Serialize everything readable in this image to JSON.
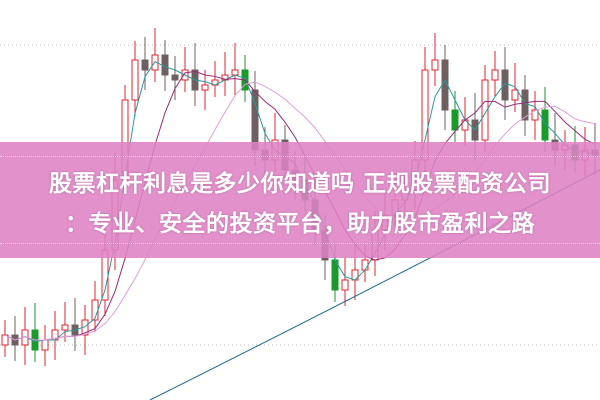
{
  "banner": {
    "title_line1": "股票杠杆利息是多少你知道吗 正规股票配资公司",
    "title_line2": "：专业、安全的投资平台，助力股市盈利之路"
  },
  "colors": {
    "banner": "#de82c4",
    "candle_up": "#e0262c",
    "candle_down_green": "#1a9a2a",
    "candle_down_gray": "#6e6060",
    "ma_short": "#2a9a9a",
    "ma_mid": "#9a2a7a",
    "ma_long": "#1a6a8a",
    "ma_pink": "#e0a0d8"
  },
  "background_icon": "candlestick-chart"
}
